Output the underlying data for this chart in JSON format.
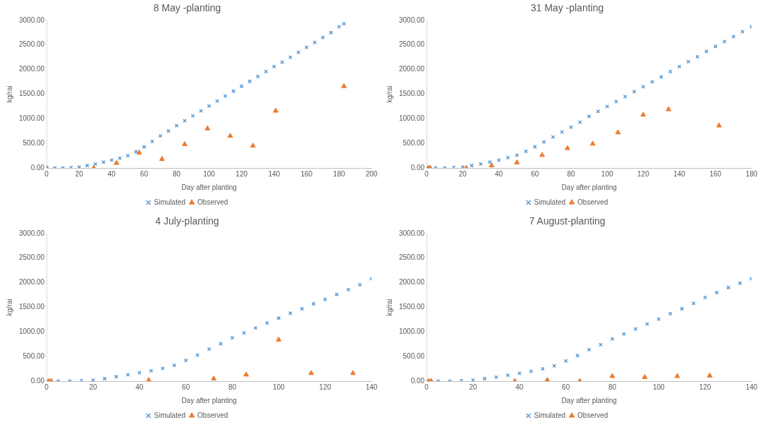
{
  "chart_data": [
    {
      "type": "scatter",
      "title": "8 May -planting",
      "xlabel": "Day after planting",
      "ylabel": "kg/rai",
      "legend": "bottom",
      "grid": false,
      "xlim": [
        0,
        200
      ],
      "xticks": [
        0,
        20,
        40,
        60,
        80,
        100,
        120,
        140,
        160,
        180,
        200
      ],
      "ylim": [
        0,
        3000
      ],
      "yticks": [
        {
          "value": 0,
          "label": "0.00"
        },
        {
          "value": 500,
          "label": "500.00"
        },
        {
          "value": 1000,
          "label": "1000.00"
        },
        {
          "value": 1500,
          "label": "1500.00"
        },
        {
          "value": 2000,
          "label": "2000.00"
        },
        {
          "value": 2500,
          "label": "2500.00"
        },
        {
          "value": 3000,
          "label": "3000.00"
        }
      ],
      "series": [
        {
          "name": "Simulated",
          "color": "#5b9bd5",
          "marker": "cross",
          "x": [
            0,
            5,
            10,
            15,
            20,
            25,
            30,
            35,
            40,
            45,
            50,
            55,
            60,
            65,
            70,
            75,
            80,
            85,
            90,
            95,
            100,
            105,
            110,
            115,
            120,
            125,
            130,
            135,
            140,
            145,
            150,
            155,
            160,
            165,
            170,
            175,
            180,
            183
          ],
          "values": [
            0,
            0,
            0,
            10,
            20,
            50,
            80,
            120,
            160,
            200,
            250,
            330,
            430,
            540,
            650,
            750,
            860,
            960,
            1060,
            1160,
            1260,
            1360,
            1460,
            1560,
            1660,
            1760,
            1860,
            1960,
            2060,
            2150,
            2250,
            2350,
            2450,
            2550,
            2650,
            2750,
            2870,
            2930
          ]
        },
        {
          "name": "Observed",
          "color": "#ed7d31",
          "marker": "triangle",
          "x": [
            0,
            29,
            43,
            57,
            71,
            85,
            99,
            113,
            127,
            141,
            183
          ],
          "values": [
            0,
            0,
            100,
            310,
            180,
            480,
            800,
            650,
            450,
            1160,
            1660
          ]
        }
      ]
    },
    {
      "type": "scatter",
      "title": "31 May -planting",
      "xlabel": "Day after planting",
      "ylabel": "kg/rai",
      "legend": "bottom",
      "grid": false,
      "xlim": [
        0,
        180
      ],
      "xticks": [
        0,
        20,
        40,
        60,
        80,
        100,
        120,
        140,
        160,
        180
      ],
      "ylim": [
        0,
        3000
      ],
      "yticks": [
        {
          "value": 0,
          "label": "0.00"
        },
        {
          "value": 500,
          "label": "500.00"
        },
        {
          "value": 1000,
          "label": "1000.00"
        },
        {
          "value": 1500,
          "label": "1500.00"
        },
        {
          "value": 2000,
          "label": "2000.00"
        },
        {
          "value": 2500,
          "label": "2500.00"
        },
        {
          "value": 3000,
          "label": "3000.00"
        }
      ],
      "series": [
        {
          "name": "Simulated",
          "color": "#5b9bd5",
          "marker": "cross",
          "x": [
            0,
            5,
            10,
            15,
            20,
            25,
            30,
            35,
            40,
            45,
            50,
            55,
            60,
            65,
            70,
            75,
            80,
            85,
            90,
            95,
            100,
            105,
            110,
            115,
            120,
            125,
            130,
            135,
            140,
            145,
            150,
            155,
            160,
            165,
            170,
            175,
            180
          ],
          "values": [
            0,
            0,
            0,
            10,
            20,
            50,
            80,
            120,
            160,
            210,
            260,
            340,
            430,
            530,
            630,
            730,
            830,
            930,
            1050,
            1150,
            1250,
            1350,
            1450,
            1550,
            1650,
            1750,
            1850,
            1960,
            2060,
            2160,
            2260,
            2370,
            2470,
            2570,
            2670,
            2770,
            2870
          ]
        },
        {
          "name": "Observed",
          "color": "#ed7d31",
          "marker": "triangle",
          "x": [
            1,
            2,
            22,
            36,
            50,
            64,
            78,
            92,
            106,
            120,
            134,
            162
          ],
          "values": [
            0,
            0,
            0,
            50,
            110,
            260,
            400,
            490,
            720,
            1080,
            1190,
            860
          ]
        }
      ]
    },
    {
      "type": "scatter",
      "title": "4 July-planting",
      "xlabel": "Day after planting",
      "ylabel": "kg/rai",
      "legend": "bottom",
      "grid": false,
      "xlim": [
        0,
        140
      ],
      "xticks": [
        0,
        20,
        40,
        60,
        80,
        100,
        120,
        140
      ],
      "ylim": [
        0,
        3000
      ],
      "yticks": [
        {
          "value": 0,
          "label": "0.00"
        },
        {
          "value": 500,
          "label": "500.00"
        },
        {
          "value": 1000,
          "label": "1000.00"
        },
        {
          "value": 1500,
          "label": "1500.00"
        },
        {
          "value": 2000,
          "label": "2000.00"
        },
        {
          "value": 2500,
          "label": "2500.00"
        },
        {
          "value": 3000,
          "label": "3000.00"
        }
      ],
      "series": [
        {
          "name": "Simulated",
          "color": "#5b9bd5",
          "marker": "cross",
          "x": [
            0,
            5,
            10,
            15,
            20,
            25,
            30,
            35,
            40,
            45,
            50,
            55,
            60,
            65,
            70,
            75,
            80,
            85,
            90,
            95,
            100,
            105,
            110,
            115,
            120,
            125,
            130,
            135,
            140
          ],
          "values": [
            0,
            0,
            0,
            10,
            20,
            50,
            90,
            130,
            170,
            210,
            260,
            320,
            420,
            530,
            650,
            760,
            880,
            980,
            1080,
            1180,
            1280,
            1380,
            1470,
            1570,
            1660,
            1760,
            1860,
            1960,
            2080
          ]
        },
        {
          "name": "Observed",
          "color": "#ed7d31",
          "marker": "triangle",
          "x": [
            1,
            2,
            44,
            72,
            86,
            100,
            114,
            132
          ],
          "values": [
            0,
            0,
            20,
            50,
            130,
            840,
            160,
            160
          ]
        }
      ]
    },
    {
      "type": "scatter",
      "title": "7 August-planting",
      "xlabel": "Day after planting",
      "ylabel": "kg/rai",
      "legend": "bottom",
      "grid": false,
      "xlim": [
        0,
        140
      ],
      "xticks": [
        0,
        20,
        40,
        60,
        80,
        100,
        120,
        140
      ],
      "ylim": [
        0,
        3000
      ],
      "yticks": [
        {
          "value": 0,
          "label": "0.00"
        },
        {
          "value": 500,
          "label": "500.00"
        },
        {
          "value": 1000,
          "label": "1000.00"
        },
        {
          "value": 1500,
          "label": "1500.00"
        },
        {
          "value": 2000,
          "label": "2000.00"
        },
        {
          "value": 2500,
          "label": "2500.00"
        },
        {
          "value": 3000,
          "label": "3000.00"
        }
      ],
      "series": [
        {
          "name": "Simulated",
          "color": "#5b9bd5",
          "marker": "cross",
          "x": [
            0,
            5,
            10,
            15,
            20,
            25,
            30,
            35,
            40,
            45,
            50,
            55,
            60,
            65,
            70,
            75,
            80,
            85,
            90,
            95,
            100,
            105,
            110,
            115,
            120,
            125,
            130,
            135,
            140
          ],
          "values": [
            0,
            0,
            0,
            10,
            20,
            50,
            80,
            120,
            160,
            200,
            250,
            310,
            410,
            520,
            640,
            740,
            860,
            960,
            1060,
            1160,
            1260,
            1370,
            1470,
            1580,
            1700,
            1800,
            1900,
            1990,
            2080
          ]
        },
        {
          "name": "Observed",
          "color": "#ed7d31",
          "marker": "triangle",
          "x": [
            1,
            2,
            38,
            52,
            66,
            80,
            94,
            108,
            122
          ],
          "values": [
            0,
            0,
            0,
            20,
            0,
            100,
            80,
            100,
            110
          ]
        }
      ]
    }
  ]
}
